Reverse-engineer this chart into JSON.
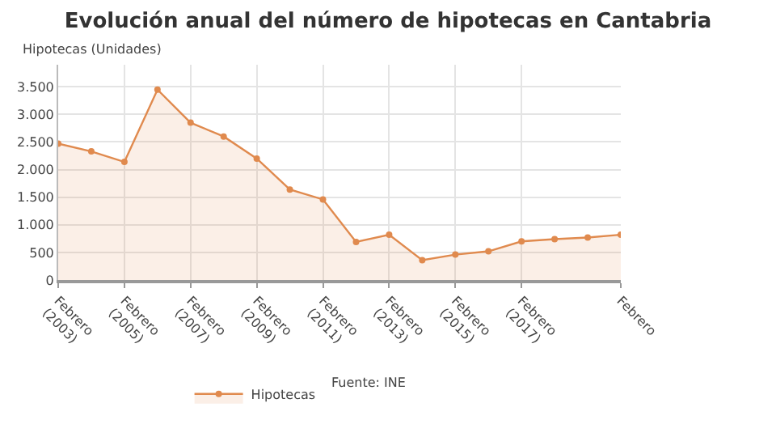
{
  "chart_data": {
    "type": "area",
    "title": "Evolución anual del número de hipotecas en Cantabria",
    "ylabel": "Hipotecas (Unidades)",
    "categories": [
      "Febrero (2003)",
      null,
      "Febrero (2005)",
      null,
      "Febrero (2007)",
      null,
      "Febrero (2009)",
      null,
      "Febrero (2011)",
      null,
      "Febrero (2013)",
      null,
      "Febrero (2015)",
      null,
      "Febrero (2017)",
      null,
      null,
      "Febrero"
    ],
    "series": [
      {
        "name": "Hipotecas",
        "color": "#e08a4e",
        "values": [
          2470,
          2330,
          2140,
          3450,
          2850,
          2600,
          2200,
          1640,
          1460,
          690,
          820,
          360,
          460,
          520,
          700,
          740,
          770,
          820
        ]
      }
    ],
    "ylim": [
      0,
      3900
    ],
    "yticks": [
      0,
      500,
      {
        "value": 1000,
        "label": "1.000"
      },
      {
        "value": 1500,
        "label": "1.500"
      },
      {
        "value": 2000,
        "label": "2.000"
      },
      {
        "value": 2500,
        "label": "2.500"
      },
      {
        "value": 3000,
        "label": "3.000"
      },
      {
        "value": 3500,
        "label": "3.500"
      }
    ],
    "grid": true,
    "legend": "bottom",
    "marker": "circle",
    "line_style": "solid",
    "annotations": [
      "Fuente: INE"
    ]
  }
}
